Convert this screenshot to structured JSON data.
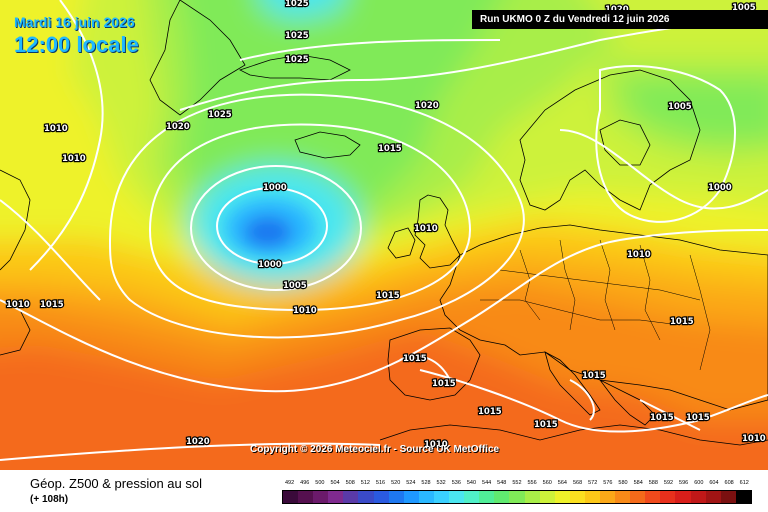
{
  "header": {
    "date": "Mardi 16 juin 2026",
    "time": "12:00 locale",
    "run": "Run UKMO 0 Z du Vendredi 12 juin 2026"
  },
  "copyright": "Copyright © 2026 Meteociel.fr - Source UK MetOffice",
  "footer": {
    "title": "Géop. Z500 & pression au sol",
    "subtitle": "(+ 108h)"
  },
  "scale": {
    "labels": [
      "492",
      "496",
      "500",
      "504",
      "508",
      "512",
      "516",
      "520",
      "524",
      "528",
      "532",
      "536",
      "540",
      "544",
      "548",
      "552",
      "556",
      "560",
      "564",
      "568",
      "572",
      "576",
      "580",
      "584",
      "588",
      "592",
      "596",
      "600",
      "604",
      "608",
      "612"
    ],
    "colors": [
      "#3a0a3a",
      "#55104f",
      "#6b1a6b",
      "#7f2a8f",
      "#5a3aa8",
      "#3a4ac8",
      "#2a5ae0",
      "#1e78f0",
      "#1e98ff",
      "#2ab8ff",
      "#3ad0ff",
      "#4ae6f0",
      "#50f0c8",
      "#50ee98",
      "#60ea70",
      "#80ea58",
      "#a8ee48",
      "#cdf23a",
      "#eef22a",
      "#fbe020",
      "#fcc818",
      "#fba818",
      "#f88a18",
      "#f46a1a",
      "#f04a1c",
      "#e8301c",
      "#d81e1a",
      "#c01818",
      "#a01414",
      "#7a1010",
      "#000000"
    ]
  },
  "map_colors": {
    "ocean_deep": "#f46a1a",
    "warm": "#f88a18",
    "orange": "#fba818",
    "yellow_orange": "#fcc818",
    "yellow": "#eef22a",
    "lime": "#cdf23a",
    "green": "#80ea58",
    "green_light": "#a8ee48",
    "cyan": "#4ae6f0",
    "blue": "#1e98ff",
    "blue_deep": "#1e78f0"
  },
  "isobar_labels": [
    "1025",
    "1025",
    "1025",
    "1020",
    "1025",
    "1020",
    "1020",
    "1010",
    "1010",
    "1005",
    "1015",
    "1000",
    "1000",
    "1005",
    "1000",
    "1010",
    "1010",
    "1010",
    "1015",
    "1015",
    "1010",
    "1005",
    "1015",
    "1015",
    "1015",
    "1015",
    "1015",
    "1015",
    "1015",
    "1020",
    "1010",
    "1010",
    "1015"
  ]
}
